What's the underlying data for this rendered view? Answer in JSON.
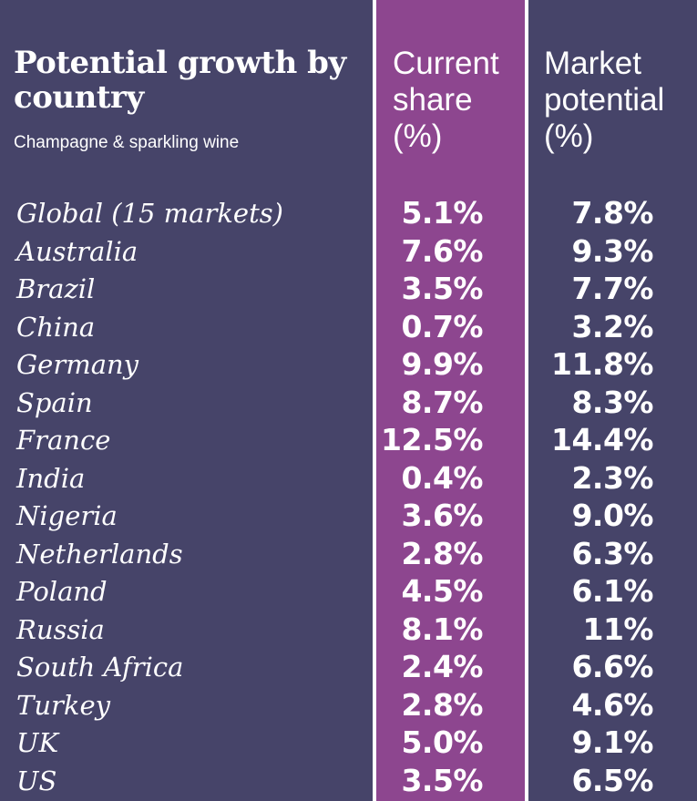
{
  "chart_data": {
    "type": "table",
    "title": "Potential growth by country",
    "subtitle": "Champagne & sparkling wine",
    "columns": [
      {
        "lines": [
          "Current",
          "share",
          "(%)"
        ]
      },
      {
        "lines": [
          "Market",
          "potential",
          "(%)"
        ]
      }
    ],
    "rows": [
      {
        "country": "Global (15 markets)",
        "current": "5.1%",
        "potential": "7.8%"
      },
      {
        "country": "Australia",
        "current": "7.6%",
        "potential": "9.3%"
      },
      {
        "country": "Brazil",
        "current": "3.5%",
        "potential": "7.7%"
      },
      {
        "country": "China",
        "current": "0.7%",
        "potential": "3.2%"
      },
      {
        "country": "Germany",
        "current": "9.9%",
        "potential": "11.8%"
      },
      {
        "country": "Spain",
        "current": "8.7%",
        "potential": "8.3%"
      },
      {
        "country": "France",
        "current": "12.5%",
        "potential": "14.4%"
      },
      {
        "country": "India",
        "current": "0.4%",
        "potential": "2.3%"
      },
      {
        "country": "Nigeria",
        "current": "3.6%",
        "potential": "9.0%"
      },
      {
        "country": "Netherlands",
        "current": "2.8%",
        "potential": "6.3%"
      },
      {
        "country": "Poland",
        "current": "4.5%",
        "potential": "6.1%"
      },
      {
        "country": "Russia",
        "current": "8.1%",
        "potential": "11%"
      },
      {
        "country": "South Africa",
        "current": "2.4%",
        "potential": "6.6%"
      },
      {
        "country": "Turkey",
        "current": "2.8%",
        "potential": "4.6%"
      },
      {
        "country": "UK",
        "current": "5.0%",
        "potential": "9.1%"
      },
      {
        "country": "US",
        "current": "3.5%",
        "potential": "6.5%"
      }
    ],
    "colors": {
      "background": "#464469",
      "highlight_column": "#8d468f",
      "divider": "#ffffff",
      "text": "#ffffff"
    }
  }
}
